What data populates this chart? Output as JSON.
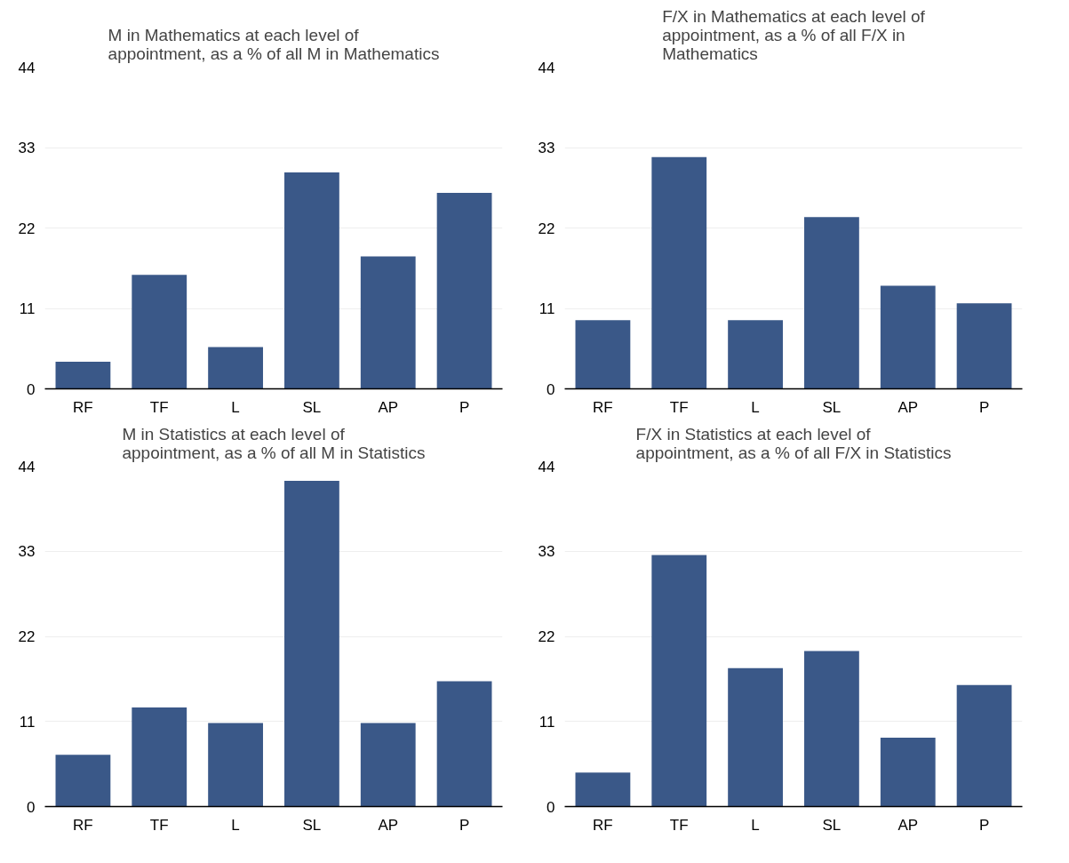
{
  "chart_data": [
    {
      "type": "bar",
      "title": "M in Mathematics at each level of appointment, as a % of all M in Mathematics",
      "categories": [
        "RF",
        "TF",
        "L",
        "SL",
        "AP",
        "P"
      ],
      "values": [
        3.7,
        15.6,
        5.7,
        29.6,
        18.1,
        26.8
      ],
      "color": "#3a5888",
      "ylim": [
        0,
        44
      ],
      "yticks": [
        0,
        11,
        22,
        33,
        44
      ],
      "grid": "y"
    },
    {
      "type": "bar",
      "title": "F/X in Mathematics at each level of appointment, as a % of all F/X in Mathematics",
      "categories": [
        "RF",
        "TF",
        "L",
        "SL",
        "AP",
        "P"
      ],
      "values": [
        9.4,
        31.7,
        9.4,
        23.5,
        14.1,
        11.7
      ],
      "color": "#3a5888",
      "ylim": [
        0,
        44
      ],
      "yticks": [
        0,
        11,
        22,
        33,
        44
      ],
      "grid": "y"
    },
    {
      "type": "bar",
      "title": "M in Statistics at each level of appointment, as a % of all M in Statistics",
      "categories": [
        "RF",
        "TF",
        "L",
        "SL",
        "AP",
        "P"
      ],
      "values": [
        6.7,
        12.8,
        10.8,
        42.1,
        10.8,
        16.2
      ],
      "color": "#3a5888",
      "ylim": [
        0,
        44
      ],
      "yticks": [
        0,
        11,
        22,
        33,
        44
      ],
      "grid": "y"
    },
    {
      "type": "bar",
      "title": "F/X in Statistics at each level of appointment, as a % of all F/X in Statistics",
      "categories": [
        "RF",
        "TF",
        "L",
        "SL",
        "AP",
        "P"
      ],
      "values": [
        4.4,
        32.5,
        17.9,
        20.1,
        8.9,
        15.7
      ],
      "color": "#3a5888",
      "ylim": [
        0,
        44
      ],
      "yticks": [
        0,
        11,
        22,
        33,
        44
      ],
      "grid": "y"
    }
  ]
}
